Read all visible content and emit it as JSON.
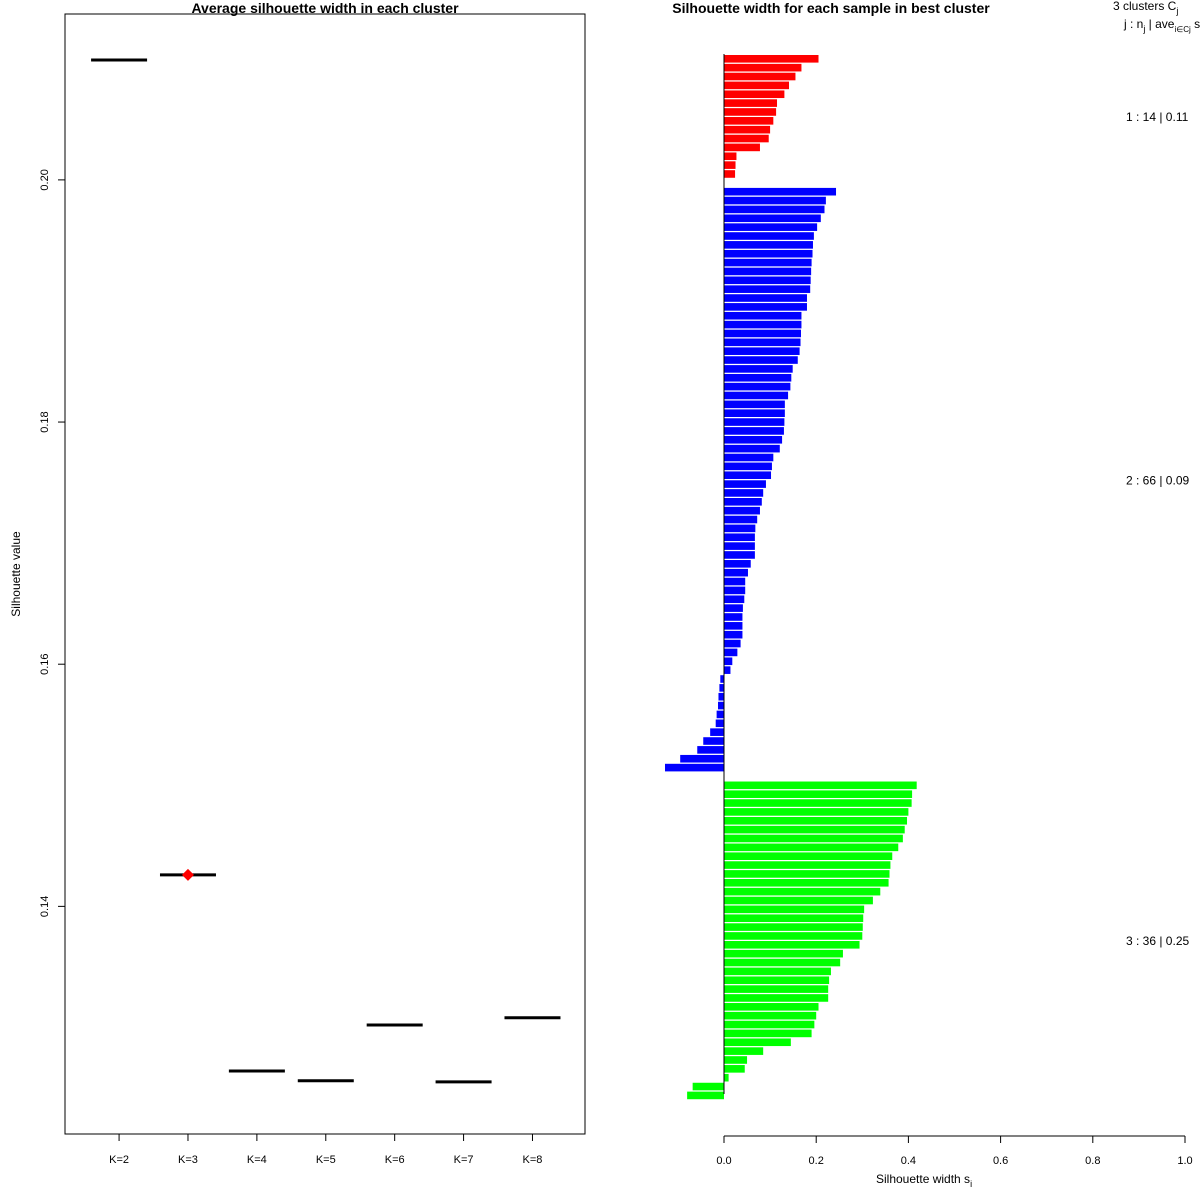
{
  "chart_data": [
    {
      "type": "scatter",
      "title": "Average silhouette width in each cluster",
      "xlabel": "",
      "ylabel": "Silhouette value",
      "categories": [
        "K=2",
        "K=3",
        "K=4",
        "K=5",
        "K=6",
        "K=7",
        "K=8"
      ],
      "values": [
        0.2099,
        0.1426,
        0.1264,
        0.1256,
        0.1302,
        0.1255,
        0.1308
      ],
      "best": "K=3",
      "best_color": "#ff0000",
      "line_color": "#000000",
      "y_ticks": [
        "0.14",
        "0.16",
        "0.18",
        "0.20"
      ],
      "ylim": [
        0.1212,
        0.2137
      ]
    },
    {
      "type": "bar",
      "orientation": "horizontal",
      "title": "Silhouette width for each sample in best cluster",
      "xlabel": "Silhouette width s",
      "xlabel_sub": "i",
      "xlim": [
        0.0,
        1.0
      ],
      "x_ticks": [
        "0.0",
        "0.2",
        "0.4",
        "0.6",
        "0.8",
        "1.0"
      ],
      "legend": {
        "line1": "3  clusters  C",
        "line1_sub": "j",
        "line2": "j :  n",
        "line2_sub": "j",
        "line2_rest": " | ave",
        "line2_sub2": "i∈Cj",
        "line2_tail": "  s"
      },
      "clusters": [
        {
          "label": "1 :   14  |  0.11",
          "color": "#ff0000",
          "values": [
            0.205,
            0.168,
            0.155,
            0.141,
            0.131,
            0.115,
            0.113,
            0.107,
            0.1,
            0.097,
            0.078,
            0.027,
            0.025,
            0.024
          ]
        },
        {
          "label": "2 :   66  |  0.09",
          "color": "#0000ff",
          "values": [
            0.243,
            0.221,
            0.218,
            0.21,
            0.202,
            0.195,
            0.193,
            0.192,
            0.19,
            0.189,
            0.188,
            0.187,
            0.18,
            0.18,
            0.168,
            0.168,
            0.167,
            0.166,
            0.164,
            0.16,
            0.149,
            0.146,
            0.144,
            0.139,
            0.132,
            0.132,
            0.131,
            0.13,
            0.126,
            0.121,
            0.107,
            0.104,
            0.102,
            0.091,
            0.085,
            0.082,
            0.078,
            0.072,
            0.068,
            0.067,
            0.067,
            0.067,
            0.058,
            0.052,
            0.046,
            0.046,
            0.044,
            0.041,
            0.04,
            0.04,
            0.04,
            0.036,
            0.029,
            0.018,
            0.014,
            -0.008,
            -0.01,
            -0.012,
            -0.013,
            -0.016,
            -0.018,
            -0.03,
            -0.045,
            -0.058,
            -0.095,
            -0.128
          ]
        },
        {
          "label": "3 :   36  |  0.25",
          "color": "#00ff00",
          "values": [
            0.418,
            0.408,
            0.407,
            0.4,
            0.397,
            0.392,
            0.388,
            0.378,
            0.365,
            0.361,
            0.359,
            0.357,
            0.339,
            0.323,
            0.304,
            0.302,
            0.301,
            0.3,
            0.294,
            0.258,
            0.252,
            0.232,
            0.228,
            0.226,
            0.226,
            0.205,
            0.2,
            0.196,
            0.19,
            0.145,
            0.085,
            0.05,
            0.045,
            0.01,
            -0.068,
            -0.08
          ]
        }
      ]
    }
  ]
}
